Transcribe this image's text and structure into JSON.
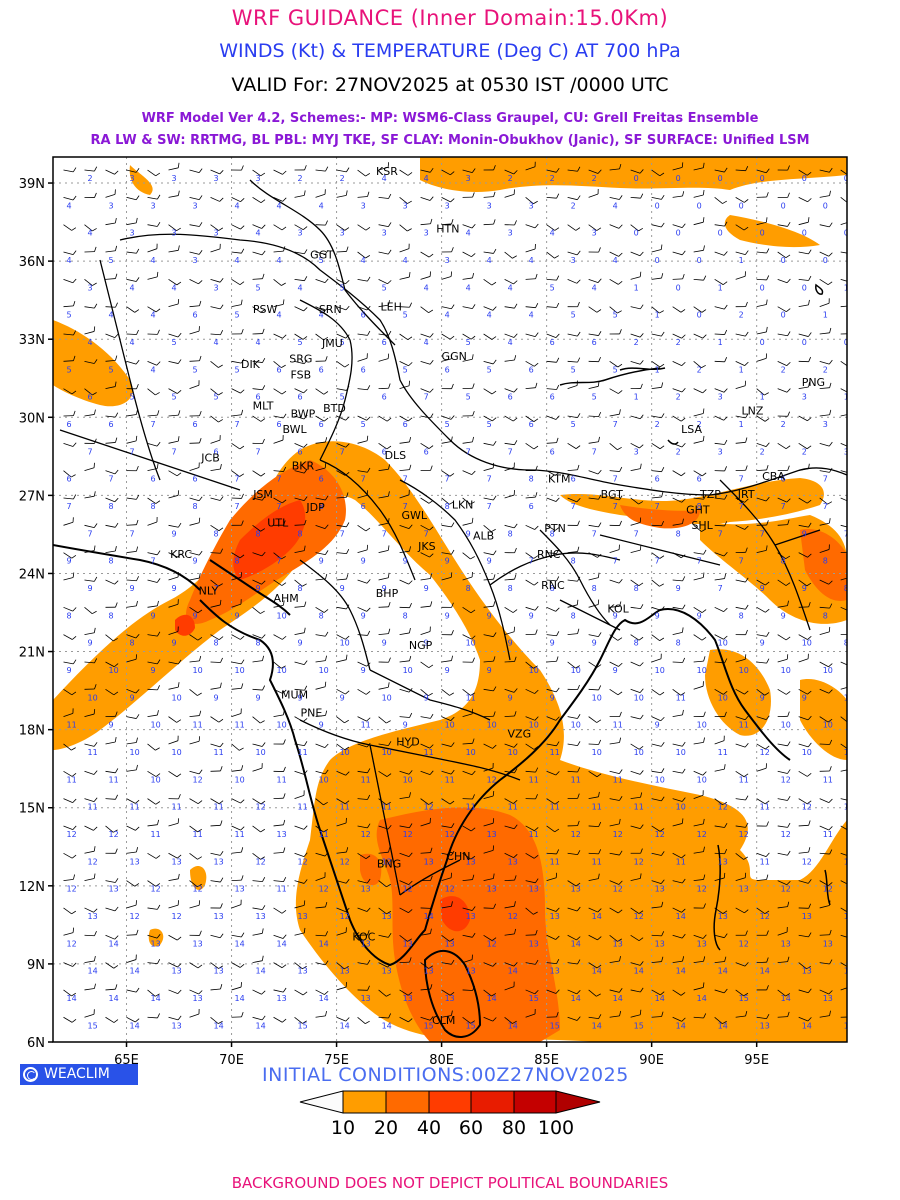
{
  "header": {
    "title": "WRF GUIDANCE (Inner Domain:15.0Km)",
    "subtitle": "WINDS (Kt) & TEMPERATURE (Deg C) AT 700 hPa",
    "valid": "VALID For: 27NOV2025 at 0530 IST /0000 UTC",
    "model_line1": "WRF Model Ver 4.2, Schemes:- MP: WSM6-Class Graupel, CU: Grell Freitas Ensemble",
    "model_line2": "RA LW & SW: RRTMG, BL PBL: MYJ TKE, SF CLAY: Monin-Obukhov (Janic), SF SURFACE: Unified LSM"
  },
  "map": {
    "lat_labels": [
      "39N",
      "36N",
      "33N",
      "30N",
      "27N",
      "24N",
      "21N",
      "18N",
      "15N",
      "12N",
      "9N",
      "6N"
    ],
    "lon_labels": [
      "65E",
      "70E",
      "75E",
      "80E",
      "85E",
      "90E",
      "95E"
    ],
    "stations": [
      {
        "name": "KSR",
        "lon": 77.4,
        "lat": 39.3
      },
      {
        "name": "HTN",
        "lon": 80.3,
        "lat": 37.1
      },
      {
        "name": "GGT",
        "lon": 74.3,
        "lat": 36.1
      },
      {
        "name": "LEH",
        "lon": 77.6,
        "lat": 34.1
      },
      {
        "name": "PSW",
        "lon": 71.6,
        "lat": 34.0
      },
      {
        "name": "SRN",
        "lon": 74.7,
        "lat": 34.0
      },
      {
        "name": "JMU",
        "lon": 74.8,
        "lat": 32.7
      },
      {
        "name": "GGN",
        "lon": 80.6,
        "lat": 32.2
      },
      {
        "name": "DIK",
        "lon": 70.9,
        "lat": 31.9
      },
      {
        "name": "SRG",
        "lon": 73.3,
        "lat": 32.1
      },
      {
        "name": "FSB",
        "lon": 73.3,
        "lat": 31.5
      },
      {
        "name": "PNG",
        "lon": 97.7,
        "lat": 31.2
      },
      {
        "name": "MLT",
        "lon": 71.5,
        "lat": 30.3
      },
      {
        "name": "BWP",
        "lon": 73.4,
        "lat": 30.0
      },
      {
        "name": "BTD",
        "lon": 74.9,
        "lat": 30.2
      },
      {
        "name": "LNZ",
        "lon": 94.8,
        "lat": 30.1
      },
      {
        "name": "BWL",
        "lon": 73.0,
        "lat": 29.4
      },
      {
        "name": "LSA",
        "lon": 91.9,
        "lat": 29.4
      },
      {
        "name": "JCB",
        "lon": 69.0,
        "lat": 28.3
      },
      {
        "name": "DLS",
        "lon": 77.8,
        "lat": 28.4
      },
      {
        "name": "BKR",
        "lon": 73.4,
        "lat": 28.0
      },
      {
        "name": "KTM",
        "lon": 85.6,
        "lat": 27.5
      },
      {
        "name": "CBA",
        "lon": 95.8,
        "lat": 27.6
      },
      {
        "name": "JSM",
        "lon": 71.5,
        "lat": 26.9
      },
      {
        "name": "BGT",
        "lon": 88.1,
        "lat": 26.9
      },
      {
        "name": "TZP",
        "lon": 92.8,
        "lat": 26.9
      },
      {
        "name": "JRT",
        "lon": 94.5,
        "lat": 26.9
      },
      {
        "name": "JDP",
        "lon": 74.0,
        "lat": 26.4
      },
      {
        "name": "LKN",
        "lon": 81.0,
        "lat": 26.5
      },
      {
        "name": "GHT",
        "lon": 92.2,
        "lat": 26.3
      },
      {
        "name": "UTL",
        "lon": 72.2,
        "lat": 25.8
      },
      {
        "name": "GWL",
        "lon": 78.7,
        "lat": 26.1
      },
      {
        "name": "SHL",
        "lon": 92.4,
        "lat": 25.7
      },
      {
        "name": "PTN",
        "lon": 85.4,
        "lat": 25.6
      },
      {
        "name": "ALB",
        "lon": 82.0,
        "lat": 25.3
      },
      {
        "name": "JKS",
        "lon": 79.3,
        "lat": 24.9
      },
      {
        "name": "KRC",
        "lon": 67.6,
        "lat": 24.6
      },
      {
        "name": "RNC",
        "lon": 85.1,
        "lat": 24.6
      },
      {
        "name": "RNC",
        "lon": 85.3,
        "lat": 23.4
      },
      {
        "name": "NLY",
        "lon": 68.9,
        "lat": 23.2
      },
      {
        "name": "AHM",
        "lon": 72.6,
        "lat": 22.9
      },
      {
        "name": "BHP",
        "lon": 77.4,
        "lat": 23.1
      },
      {
        "name": "KOL",
        "lon": 88.4,
        "lat": 22.5
      },
      {
        "name": "NGP",
        "lon": 79.0,
        "lat": 21.1
      },
      {
        "name": "MUM",
        "lon": 73.0,
        "lat": 19.2
      },
      {
        "name": "PNE",
        "lon": 73.8,
        "lat": 18.5
      },
      {
        "name": "VZG",
        "lon": 83.7,
        "lat": 17.7
      },
      {
        "name": "HYD",
        "lon": 78.4,
        "lat": 17.4
      },
      {
        "name": "CHN",
        "lon": 80.8,
        "lat": 13.0
      },
      {
        "name": "BNG",
        "lon": 77.5,
        "lat": 12.7
      },
      {
        "name": "KOC",
        "lon": 76.3,
        "lat": 9.9
      },
      {
        "name": "CLM",
        "lon": 80.1,
        "lat": 6.7
      }
    ],
    "shading_colors": [
      "#fbfbfb",
      "#ff9d00",
      "#ff6a00",
      "#ff3c00",
      "#e81c00",
      "#c40000"
    ]
  },
  "footer": {
    "badge": "WEACLIM",
    "initial": "INITIAL CONDITIONS:00Z27NOV2025",
    "legend_ticks": [
      "10",
      "20",
      "40",
      "60",
      "80",
      "100"
    ],
    "disclaimer": "BACKGROUND DOES NOT DEPICT POLITICAL BOUNDARIES"
  }
}
